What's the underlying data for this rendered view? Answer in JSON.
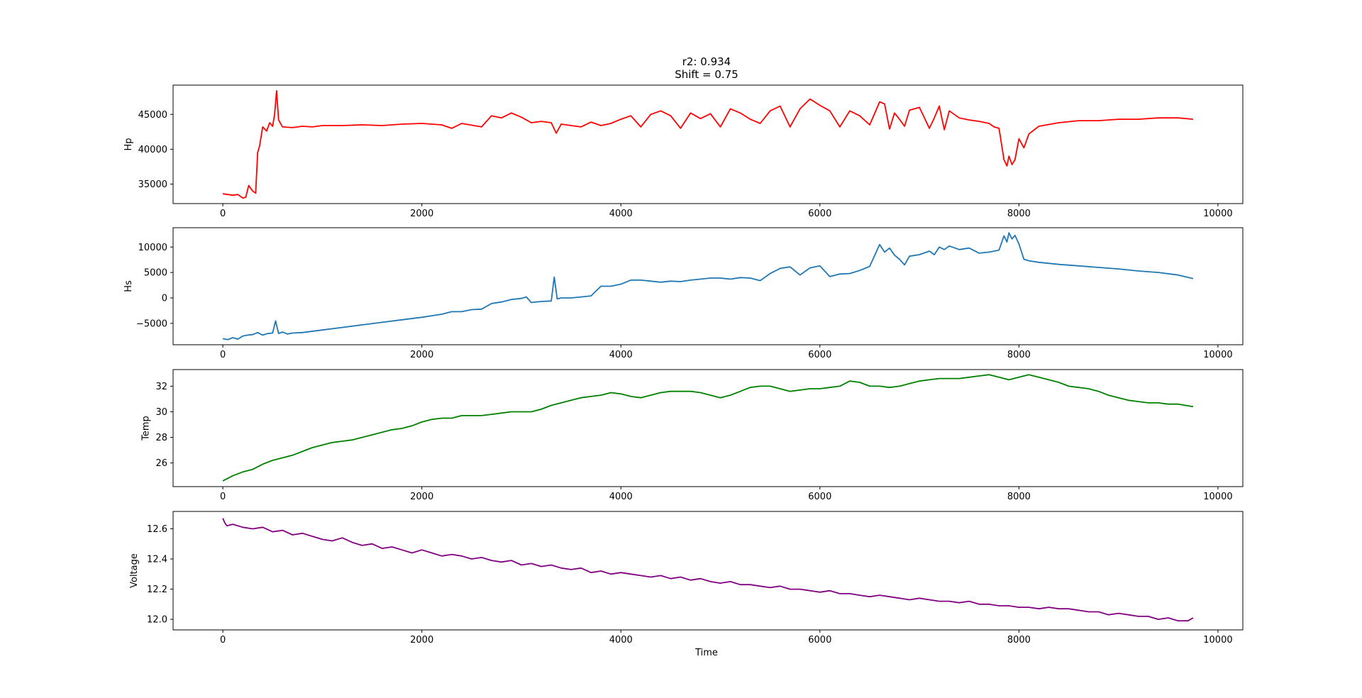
{
  "figure": {
    "title_line1": "r2: 0.934",
    "title_line2": "Shift = 0.75",
    "xlabel": "Time"
  },
  "chart_data": [
    {
      "type": "line",
      "ylabel": "Hp",
      "color": "#ff0000",
      "xlim": [
        -500,
        10250
      ],
      "ylim": [
        32200,
        49200
      ],
      "xticks": [
        0,
        2000,
        4000,
        6000,
        8000,
        10000
      ],
      "yticks": [
        35000,
        40000,
        45000
      ],
      "x": [
        0,
        100,
        150,
        200,
        230,
        260,
        300,
        330,
        350,
        370,
        400,
        440,
        470,
        500,
        520,
        540,
        560,
        600,
        700,
        800,
        900,
        1000,
        1200,
        1400,
        1600,
        1800,
        2000,
        2200,
        2300,
        2400,
        2600,
        2700,
        2800,
        2900,
        3000,
        3100,
        3200,
        3300,
        3350,
        3400,
        3500,
        3600,
        3700,
        3800,
        3900,
        4000,
        4100,
        4200,
        4300,
        4400,
        4500,
        4600,
        4700,
        4800,
        4900,
        5000,
        5100,
        5200,
        5300,
        5400,
        5500,
        5600,
        5700,
        5800,
        5900,
        6000,
        6100,
        6200,
        6300,
        6400,
        6500,
        6600,
        6650,
        6700,
        6750,
        6800,
        6850,
        6900,
        7000,
        7100,
        7150,
        7200,
        7250,
        7300,
        7400,
        7500,
        7600,
        7700,
        7750,
        7800,
        7850,
        7880,
        7900,
        7930,
        7960,
        8000,
        8050,
        8100,
        8200,
        8400,
        8600,
        8800,
        9000,
        9200,
        9400,
        9600,
        9750
      ],
      "y": [
        33600,
        33400,
        33500,
        33000,
        33100,
        34800,
        34000,
        33700,
        39500,
        40500,
        43200,
        42600,
        43800,
        43300,
        45000,
        48400,
        44200,
        43200,
        43100,
        43300,
        43200,
        43400,
        43400,
        43500,
        43400,
        43600,
        43700,
        43500,
        43000,
        43700,
        43200,
        44800,
        44500,
        45200,
        44600,
        43800,
        44000,
        43800,
        42300,
        43600,
        43400,
        43200,
        43900,
        43400,
        43700,
        44300,
        44800,
        43200,
        45000,
        45500,
        44800,
        43000,
        45200,
        44400,
        45100,
        43200,
        45800,
        45200,
        44300,
        43700,
        45500,
        46200,
        43200,
        45800,
        47200,
        46300,
        45500,
        43200,
        45500,
        44800,
        43500,
        46800,
        46500,
        42900,
        45200,
        44300,
        43300,
        45600,
        46000,
        43000,
        44500,
        46200,
        42800,
        45500,
        44500,
        44200,
        44000,
        43700,
        43200,
        43000,
        38500,
        37600,
        39000,
        37800,
        38500,
        41500,
        40200,
        42200,
        43300,
        43800,
        44100,
        44100,
        44300,
        44300,
        44500,
        44500,
        44300
      ]
    },
    {
      "type": "line",
      "ylabel": "Hs",
      "color": "#1f77b4",
      "xlim": [
        -500,
        10250
      ],
      "ylim": [
        -9200,
        13800
      ],
      "xticks": [
        0,
        2000,
        4000,
        6000,
        8000,
        10000
      ],
      "yticks": [
        -5000,
        0,
        5000,
        10000
      ],
      "x": [
        0,
        50,
        100,
        150,
        200,
        250,
        300,
        350,
        400,
        450,
        500,
        530,
        560,
        600,
        650,
        700,
        800,
        1000,
        1200,
        1400,
        1600,
        1800,
        2000,
        2100,
        2200,
        2300,
        2400,
        2500,
        2600,
        2700,
        2800,
        2900,
        3000,
        3050,
        3100,
        3150,
        3200,
        3300,
        3330,
        3360,
        3400,
        3500,
        3600,
        3700,
        3800,
        3900,
        4000,
        4100,
        4200,
        4300,
        4400,
        4500,
        4600,
        4700,
        4800,
        4900,
        5000,
        5100,
        5200,
        5300,
        5400,
        5500,
        5600,
        5700,
        5800,
        5900,
        6000,
        6100,
        6200,
        6300,
        6400,
        6500,
        6600,
        6650,
        6700,
        6750,
        6800,
        6850,
        6900,
        7000,
        7100,
        7150,
        7200,
        7250,
        7300,
        7400,
        7500,
        7600,
        7700,
        7800,
        7850,
        7880,
        7900,
        7930,
        7960,
        8000,
        8050,
        8100,
        8200,
        8400,
        8600,
        8800,
        9000,
        9200,
        9400,
        9600,
        9750
      ],
      "y": [
        -8000,
        -8200,
        -7800,
        -8100,
        -7500,
        -7300,
        -7200,
        -6800,
        -7300,
        -7000,
        -6900,
        -4500,
        -7000,
        -6700,
        -7100,
        -6900,
        -6800,
        -6300,
        -5800,
        -5300,
        -4800,
        -4300,
        -3800,
        -3500,
        -3200,
        -2700,
        -2700,
        -2300,
        -2200,
        -1100,
        -800,
        -300,
        -100,
        200,
        -900,
        -800,
        -700,
        -600,
        4100,
        -200,
        0,
        0,
        200,
        400,
        2300,
        2300,
        2700,
        3500,
        3500,
        3300,
        3100,
        3300,
        3200,
        3500,
        3700,
        3900,
        3900,
        3700,
        4000,
        3900,
        3400,
        4800,
        5800,
        6100,
        4500,
        5900,
        6300,
        4200,
        4700,
        4800,
        5400,
        6200,
        10500,
        9000,
        9800,
        8400,
        7600,
        6500,
        8200,
        8500,
        9200,
        8500,
        10000,
        9500,
        10200,
        9500,
        9800,
        8800,
        9000,
        9400,
        12200,
        11000,
        12800,
        11600,
        12300,
        10600,
        7600,
        7300,
        7000,
        6600,
        6300,
        6000,
        5700,
        5300,
        5000,
        4500,
        3800
      ]
    },
    {
      "type": "line",
      "ylabel": "Temp",
      "color": "#008000",
      "xlim": [
        -500,
        10250
      ],
      "ylim": [
        24.15,
        33.3
      ],
      "xticks": [
        0,
        2000,
        4000,
        6000,
        8000,
        10000
      ],
      "yticks": [
        26,
        28,
        30,
        32
      ],
      "x": [
        0,
        100,
        200,
        300,
        400,
        500,
        600,
        700,
        800,
        900,
        1000,
        1100,
        1200,
        1300,
        1400,
        1500,
        1600,
        1700,
        1800,
        1900,
        2000,
        2100,
        2200,
        2300,
        2400,
        2500,
        2600,
        2700,
        2800,
        2900,
        3000,
        3100,
        3200,
        3300,
        3400,
        3500,
        3600,
        3700,
        3800,
        3900,
        4000,
        4100,
        4200,
        4300,
        4400,
        4500,
        4600,
        4700,
        4800,
        4900,
        5000,
        5100,
        5200,
        5300,
        5400,
        5500,
        5600,
        5700,
        5800,
        5900,
        6000,
        6100,
        6200,
        6300,
        6400,
        6500,
        6600,
        6700,
        6800,
        6900,
        7000,
        7100,
        7200,
        7300,
        7400,
        7500,
        7600,
        7700,
        7800,
        7900,
        8000,
        8100,
        8200,
        8300,
        8400,
        8500,
        8600,
        8700,
        8800,
        8900,
        9000,
        9100,
        9200,
        9300,
        9400,
        9500,
        9600,
        9750
      ],
      "y": [
        24.6,
        25.0,
        25.3,
        25.5,
        25.9,
        26.2,
        26.4,
        26.6,
        26.9,
        27.2,
        27.4,
        27.6,
        27.7,
        27.8,
        28.0,
        28.2,
        28.4,
        28.6,
        28.7,
        28.9,
        29.2,
        29.4,
        29.5,
        29.5,
        29.7,
        29.7,
        29.7,
        29.8,
        29.9,
        30.0,
        30.0,
        30.0,
        30.2,
        30.5,
        30.7,
        30.9,
        31.1,
        31.2,
        31.3,
        31.5,
        31.4,
        31.2,
        31.1,
        31.3,
        31.5,
        31.6,
        31.6,
        31.6,
        31.5,
        31.3,
        31.1,
        31.3,
        31.6,
        31.9,
        32.0,
        32.0,
        31.8,
        31.6,
        31.7,
        31.8,
        31.8,
        31.9,
        32.0,
        32.4,
        32.3,
        32.0,
        32.0,
        31.9,
        32.0,
        32.2,
        32.4,
        32.5,
        32.6,
        32.6,
        32.6,
        32.7,
        32.8,
        32.9,
        32.7,
        32.5,
        32.7,
        32.9,
        32.7,
        32.5,
        32.3,
        32.0,
        31.9,
        31.8,
        31.6,
        31.3,
        31.1,
        30.9,
        30.8,
        30.7,
        30.7,
        30.6,
        30.6,
        30.4
      ]
    },
    {
      "type": "line",
      "ylabel": "Voltage",
      "color": "#800080",
      "xlim": [
        -500,
        10250
      ],
      "ylim": [
        11.93,
        12.715
      ],
      "xticks": [
        0,
        2000,
        4000,
        6000,
        8000,
        10000
      ],
      "yticks": [
        12.0,
        12.2,
        12.4,
        12.6
      ],
      "x": [
        0,
        20,
        40,
        100,
        200,
        300,
        400,
        500,
        600,
        700,
        800,
        900,
        1000,
        1100,
        1200,
        1300,
        1400,
        1500,
        1600,
        1700,
        1800,
        1900,
        2000,
        2100,
        2200,
        2300,
        2400,
        2500,
        2600,
        2700,
        2800,
        2900,
        3000,
        3100,
        3200,
        3300,
        3400,
        3500,
        3600,
        3700,
        3800,
        3900,
        4000,
        4100,
        4200,
        4300,
        4400,
        4500,
        4600,
        4700,
        4800,
        4900,
        5000,
        5100,
        5200,
        5300,
        5400,
        5500,
        5600,
        5700,
        5800,
        5900,
        6000,
        6100,
        6200,
        6300,
        6400,
        6500,
        6600,
        6700,
        6800,
        6900,
        7000,
        7100,
        7200,
        7300,
        7400,
        7500,
        7600,
        7700,
        7800,
        7900,
        8000,
        8100,
        8200,
        8300,
        8400,
        8500,
        8600,
        8700,
        8800,
        8900,
        9000,
        9100,
        9200,
        9300,
        9400,
        9500,
        9600,
        9700,
        9750
      ],
      "y": [
        12.67,
        12.64,
        12.62,
        12.63,
        12.61,
        12.6,
        12.61,
        12.58,
        12.59,
        12.56,
        12.57,
        12.55,
        12.53,
        12.52,
        12.54,
        12.51,
        12.49,
        12.5,
        12.47,
        12.48,
        12.46,
        12.44,
        12.46,
        12.44,
        12.42,
        12.43,
        12.42,
        12.4,
        12.41,
        12.39,
        12.38,
        12.39,
        12.36,
        12.37,
        12.35,
        12.36,
        12.34,
        12.33,
        12.34,
        12.31,
        12.32,
        12.3,
        12.31,
        12.3,
        12.29,
        12.28,
        12.29,
        12.27,
        12.28,
        12.26,
        12.27,
        12.25,
        12.24,
        12.25,
        12.23,
        12.23,
        12.22,
        12.21,
        12.22,
        12.2,
        12.2,
        12.19,
        12.18,
        12.19,
        12.17,
        12.17,
        12.16,
        12.15,
        12.16,
        12.15,
        12.14,
        12.13,
        12.14,
        12.13,
        12.12,
        12.12,
        12.11,
        12.12,
        12.1,
        12.1,
        12.09,
        12.09,
        12.08,
        12.08,
        12.07,
        12.08,
        12.07,
        12.07,
        12.06,
        12.05,
        12.05,
        12.03,
        12.04,
        12.03,
        12.02,
        12.02,
        12.0,
        12.01,
        11.99,
        11.99,
        12.01
      ]
    }
  ]
}
